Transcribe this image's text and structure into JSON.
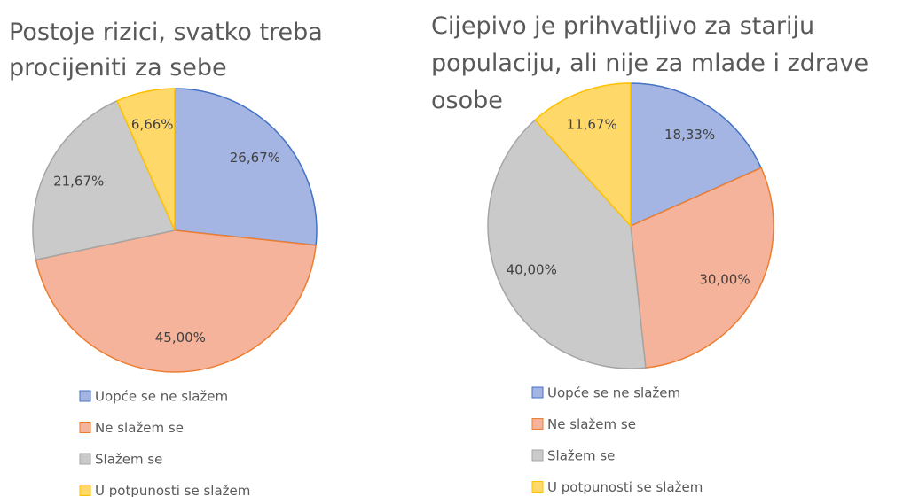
{
  "chart_data": [
    {
      "type": "pie",
      "title": [
        "Postoje rizici, svatko treba",
        "procijeniti za sebe"
      ],
      "categories": [
        "Uopće se ne slažem",
        "Ne slažem se",
        "Slažem se",
        "U potpunosti se slažem"
      ],
      "values": [
        26.67,
        45,
        21.67,
        6.66
      ],
      "value_labels": [
        "26,67%",
        "45,00%",
        "21,67%",
        "6,66%"
      ],
      "colors": [
        "#a4b5e3",
        "#f5b39b",
        "#cacaca",
        "#ffd86a"
      ],
      "edge_colors": [
        "#4472c4",
        "#ed7d31",
        "#a5a5a5",
        "#ffc000"
      ],
      "legend": "bottom"
    },
    {
      "type": "pie",
      "title": [
        "Cijepivo je prihvatljivo za stariju",
        "populaciju, ali nije za mlade i zdrave",
        "osobe"
      ],
      "categories": [
        "Uopće se ne slažem",
        "Ne slažem se",
        "Slažem se",
        "U potpunosti se slažem"
      ],
      "values": [
        18.33,
        30,
        40,
        11.67
      ],
      "value_labels": [
        "18,33%",
        "30,00%",
        "40,00%",
        "11,67%"
      ],
      "colors": [
        "#a4b5e3",
        "#f5b39b",
        "#cacaca",
        "#ffd86a"
      ],
      "edge_colors": [
        "#4472c4",
        "#ed7d31",
        "#a5a5a5",
        "#ffc000"
      ],
      "legend": "bottom"
    }
  ]
}
